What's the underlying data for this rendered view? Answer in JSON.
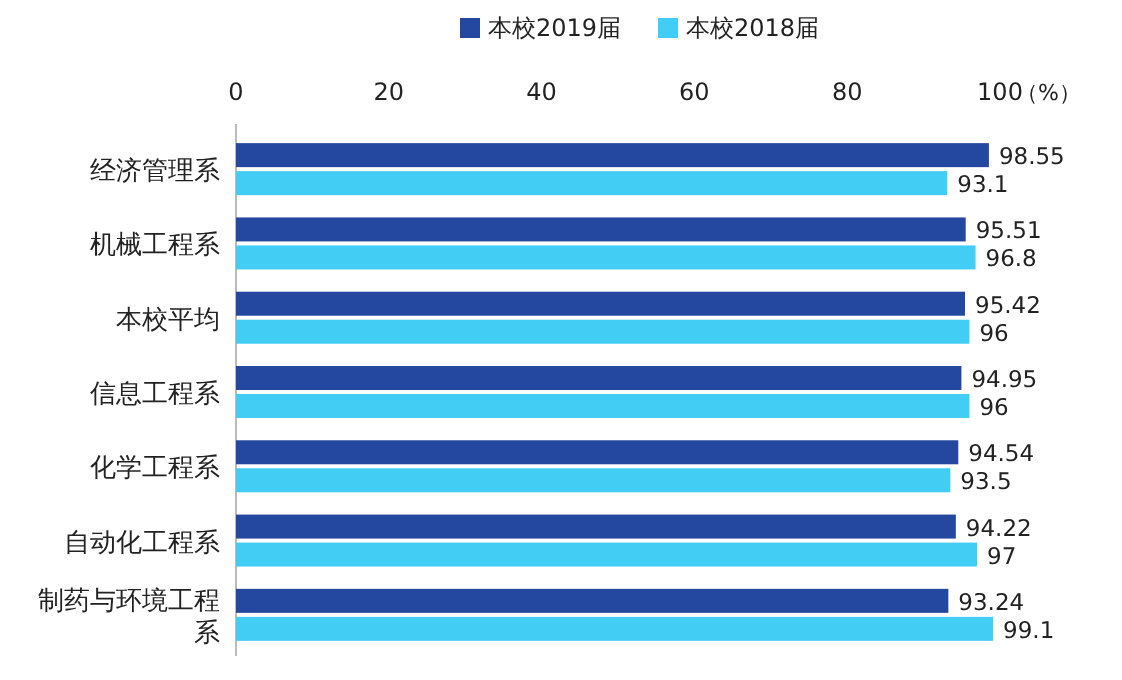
{
  "chart_data": {
    "type": "bar",
    "orientation": "horizontal",
    "categories": [
      "经济管理系",
      "机械工程系",
      "本校平均",
      "信息工程系",
      "化学工程系",
      "自动化工程系",
      "制药与环境工程系"
    ],
    "series": [
      {
        "name": "本校2019届",
        "color": "#2447a0",
        "values": [
          98.55,
          95.51,
          95.42,
          94.95,
          94.54,
          94.22,
          93.24
        ]
      },
      {
        "name": "本校2018届",
        "color": "#41cdf4",
        "values": [
          93.1,
          96.8,
          96,
          96,
          93.5,
          97,
          99.1
        ]
      }
    ],
    "xlim": [
      0,
      100
    ],
    "xticks": [
      0,
      20,
      40,
      60,
      80,
      100
    ],
    "xlabel": "（%）",
    "legend": "top",
    "data_labels": true
  }
}
